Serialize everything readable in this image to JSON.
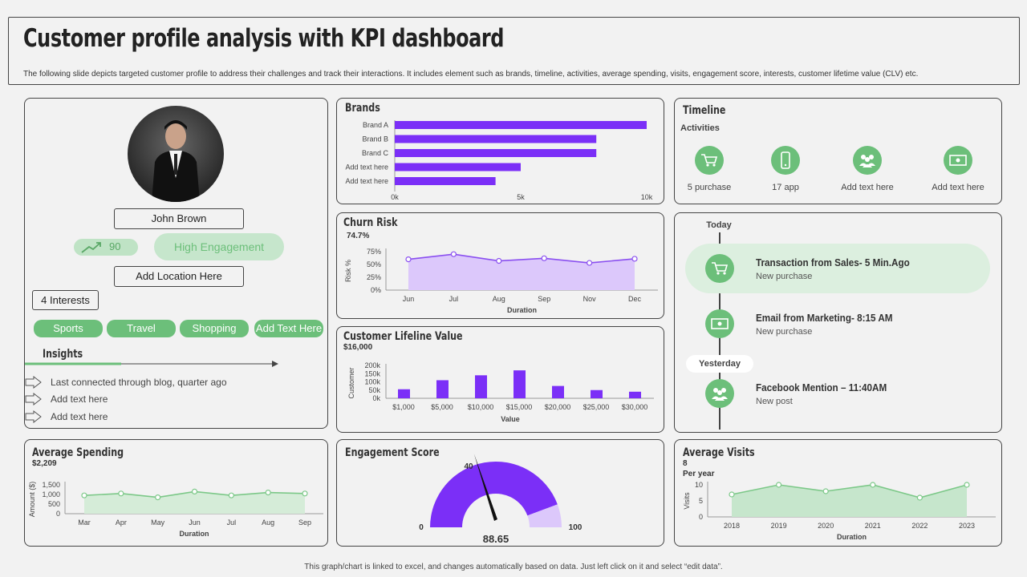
{
  "header": {
    "title": "Customer profile analysis with KPI dashboard",
    "subtitle": "The following slide depicts targeted customer profile to address their challenges and track their interactions. It includes element such as brands, timeline,  activities, average spending, visits, engagement score, interests, customer lifetime value (CLV) etc."
  },
  "profile": {
    "name": "John Brown",
    "score": "90",
    "engagement": "High Engagement",
    "location": "Add Location Here",
    "interests_count": "4 Interests",
    "interests": [
      "Sports",
      "Travel",
      "Shopping",
      "Add Text Here"
    ],
    "insights_title": "Insights",
    "insights": [
      "Last connected through blog, quarter ago",
      "Add text here",
      "Add text here"
    ]
  },
  "timeline": {
    "title": "Timeline",
    "activities_label": "Activities",
    "activities": [
      {
        "label": "5 purchase",
        "icon": "cart-icon"
      },
      {
        "label": "17 app",
        "icon": "phone-icon"
      },
      {
        "label": "Add text here",
        "icon": "people-icon"
      },
      {
        "label": "Add text here",
        "icon": "money-icon"
      }
    ]
  },
  "feed": {
    "today": "Today",
    "yesterday": "Yesterday",
    "items": [
      {
        "title": "Transaction from Sales- 5 Min.Ago",
        "sub": "New purchase"
      },
      {
        "title": "Email from Marketing- 8:15 AM",
        "sub": "New purchase"
      },
      {
        "title": "Facebook Mention – 11:40AM",
        "sub": "New post"
      }
    ]
  },
  "colors": {
    "purple": "#7b2ff7",
    "purple_light": "#dcc8fb",
    "green": "#6cbf7a",
    "green_light": "#d5ecd8"
  },
  "footer": "This graph/chart is linked to excel, and changes automatically based on data. Just left click on it and select “edit data”.",
  "chart_data": [
    {
      "id": "brands",
      "type": "bar",
      "orientation": "horizontal",
      "title": "Brands",
      "categories": [
        "Brand A",
        "Brand B",
        "Brand C",
        "Add text here",
        "Add text here"
      ],
      "values": [
        10000,
        8000,
        8000,
        5000,
        4000
      ],
      "xlim": [
        0,
        10000
      ],
      "xticks": [
        "0k",
        "5k",
        "10k"
      ]
    },
    {
      "id": "churn",
      "type": "area",
      "title": "Churn Risk",
      "value_label": "74.7%",
      "x": [
        "Jun",
        "Jul",
        "Aug",
        "Sep",
        "Nov",
        "Dec"
      ],
      "values": [
        60,
        70,
        57,
        62,
        53,
        61
      ],
      "ylim": [
        0,
        75
      ],
      "yticks": [
        "75%",
        "50%",
        "25%",
        "0%"
      ],
      "ylabel": "Risk %",
      "xlabel": "Duration"
    },
    {
      "id": "clv",
      "type": "bar",
      "title": "Customer Lifeline Value",
      "value_label": "$16,000",
      "categories": [
        "$1,000",
        "$5,000",
        "$10,000",
        "$15,000",
        "$20,000",
        "$25,000",
        "$30,000"
      ],
      "values": [
        55000,
        110000,
        140000,
        170000,
        75000,
        50000,
        40000
      ],
      "ylim": [
        0,
        200000
      ],
      "yticks": [
        "200k",
        "150k",
        "100k",
        "50k",
        "0k"
      ],
      "ylabel": "Customer",
      "xlabel": "Value"
    },
    {
      "id": "spending",
      "type": "area",
      "title": "Average Spending",
      "value_label": "$2,209",
      "x": [
        "Mar",
        "Apr",
        "May",
        "Jun",
        "Jul",
        "Aug",
        "Sep"
      ],
      "values": [
        950,
        1050,
        850,
        1150,
        950,
        1100,
        1050
      ],
      "ylim": [
        0,
        1500
      ],
      "yticks": [
        "1,500",
        "1,000",
        "500",
        "0"
      ],
      "ylabel": "Amount ($)",
      "xlabel": "Duration"
    },
    {
      "id": "engagement",
      "type": "gauge",
      "title": "Engagement Score",
      "min": "0",
      "max": "100",
      "mid": "40",
      "value": 88.65,
      "value_label": "88.65"
    },
    {
      "id": "visits",
      "type": "area",
      "title": "Average Visits",
      "value_label": "8",
      "sublabel": "Per year",
      "x": [
        "2018",
        "2019",
        "2020",
        "2021",
        "2022",
        "2023"
      ],
      "values": [
        7,
        10,
        8,
        10,
        6,
        10
      ],
      "ylim": [
        0,
        10
      ],
      "yticks": [
        "10",
        "5",
        "0"
      ],
      "ylabel": "Visits",
      "xlabel": "Duration"
    }
  ]
}
